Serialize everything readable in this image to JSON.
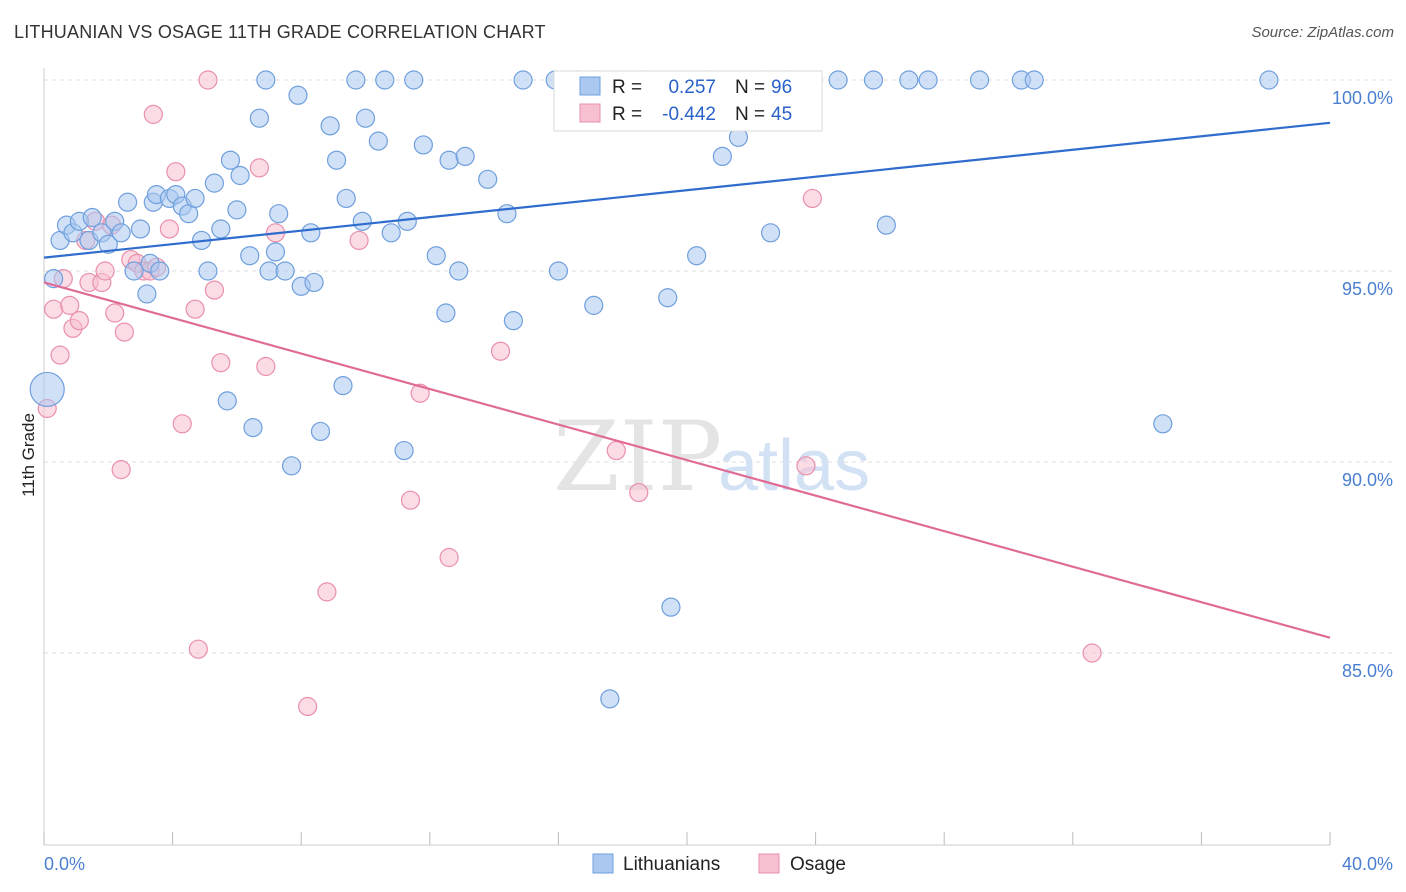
{
  "title": "LITHUANIAN VS OSAGE 11TH GRADE CORRELATION CHART",
  "source": "Source: ZipAtlas.com",
  "watermark": {
    "zip": "ZIP",
    "atlas": "atlas"
  },
  "colors": {
    "blue_fill": "#aac8f0",
    "blue_stroke": "#6f9fdd",
    "blue_line": "#2f6ccd",
    "pink_fill": "#f7c0d0",
    "pink_stroke": "#e98fac",
    "pink_line": "#e06b95",
    "tick_text": "#4a7fd0",
    "grid": "#dddddd"
  },
  "stats": {
    "r_label": "R =",
    "n_label": "N =",
    "rows": [
      {
        "series": "Lithuanians",
        "r": "0.257",
        "n": "96"
      },
      {
        "series": "Osage",
        "r": "-0.442",
        "n": "45"
      }
    ]
  },
  "chart_data": {
    "type": "scatter",
    "title": "LITHUANIAN VS OSAGE 11TH GRADE CORRELATION CHART",
    "xlabel": "",
    "ylabel": "11th Grade",
    "xlim": [
      0,
      40
    ],
    "ylim": [
      80,
      100.4
    ],
    "x_tick_labels": [
      "0.0%",
      "40.0%"
    ],
    "y_ticks": [
      85,
      90,
      95,
      100
    ],
    "y_tick_labels": [
      "85.0%",
      "90.0%",
      "95.0%",
      "100.0%"
    ],
    "grid": true,
    "legend_position": "bottom-center",
    "series": [
      {
        "name": "Lithuanians",
        "color": "#aac8f0",
        "trend": {
          "x": [
            0,
            40
          ],
          "y": [
            95.35,
            98.88
          ]
        },
        "points": [
          [
            0.1,
            91.9
          ],
          [
            0.3,
            94.8
          ],
          [
            0.5,
            95.8
          ],
          [
            0.7,
            96.2
          ],
          [
            0.9,
            96.0
          ],
          [
            1.1,
            96.3
          ],
          [
            1.4,
            95.8
          ],
          [
            1.5,
            96.4
          ],
          [
            1.8,
            96.0
          ],
          [
            2.0,
            95.7
          ],
          [
            2.2,
            96.3
          ],
          [
            2.4,
            96.0
          ],
          [
            2.6,
            96.8
          ],
          [
            3.0,
            96.1
          ],
          [
            3.3,
            95.2
          ],
          [
            3.6,
            95.0
          ],
          [
            3.2,
            94.4
          ],
          [
            3.4,
            96.8
          ],
          [
            3.5,
            97.0
          ],
          [
            3.9,
            96.9
          ],
          [
            4.1,
            97.0
          ],
          [
            4.3,
            96.7
          ],
          [
            4.5,
            96.5
          ],
          [
            4.7,
            96.9
          ],
          [
            4.9,
            95.8
          ],
          [
            5.1,
            95.0
          ],
          [
            5.3,
            97.3
          ],
          [
            5.5,
            96.1
          ],
          [
            5.7,
            91.6
          ],
          [
            5.8,
            97.9
          ],
          [
            6.0,
            96.6
          ],
          [
            6.1,
            97.5
          ],
          [
            6.4,
            95.4
          ],
          [
            6.5,
            90.9
          ],
          [
            6.7,
            99.0
          ],
          [
            7.0,
            95.0
          ],
          [
            7.2,
            95.5
          ],
          [
            7.3,
            96.5
          ],
          [
            7.5,
            95.0
          ],
          [
            7.7,
            89.9
          ],
          [
            7.9,
            99.6
          ],
          [
            8.0,
            94.6
          ],
          [
            8.3,
            96.0
          ],
          [
            8.4,
            94.7
          ],
          [
            8.6,
            90.8
          ],
          [
            8.9,
            98.8
          ],
          [
            9.1,
            97.9
          ],
          [
            9.3,
            92.0
          ],
          [
            9.4,
            96.9
          ],
          [
            9.7,
            100.0
          ],
          [
            9.9,
            96.3
          ],
          [
            10.0,
            99.0
          ],
          [
            10.4,
            98.4
          ],
          [
            10.6,
            100.0
          ],
          [
            10.8,
            96.0
          ],
          [
            11.2,
            90.3
          ],
          [
            11.3,
            96.3
          ],
          [
            11.8,
            98.3
          ],
          [
            12.2,
            95.4
          ],
          [
            12.5,
            93.9
          ],
          [
            12.6,
            97.9
          ],
          [
            12.9,
            95.0
          ],
          [
            13.1,
            98.0
          ],
          [
            13.8,
            97.4
          ],
          [
            14.4,
            96.5
          ],
          [
            14.6,
            93.7
          ],
          [
            14.9,
            100.0
          ],
          [
            15.9,
            100.0
          ],
          [
            16.0,
            95.0
          ],
          [
            17.2,
            100.0
          ],
          [
            16.6,
            100.0
          ],
          [
            17.1,
            94.1
          ],
          [
            18.6,
            100.0
          ],
          [
            19.4,
            94.3
          ],
          [
            19.5,
            86.2
          ],
          [
            20.3,
            95.4
          ],
          [
            20.7,
            100.0
          ],
          [
            21.1,
            98.0
          ],
          [
            21.6,
            98.5
          ],
          [
            22.3,
            100.0
          ],
          [
            22.6,
            96.0
          ],
          [
            23.2,
            100.0
          ],
          [
            24.7,
            100.0
          ],
          [
            25.8,
            100.0
          ],
          [
            26.2,
            96.2
          ],
          [
            26.9,
            100.0
          ],
          [
            27.5,
            100.0
          ],
          [
            29.1,
            100.0
          ],
          [
            30.4,
            100.0
          ],
          [
            30.8,
            100.0
          ],
          [
            34.8,
            91.0
          ],
          [
            38.1,
            100.0
          ],
          [
            17.6,
            83.8
          ],
          [
            11.5,
            100.0
          ],
          [
            6.9,
            100.0
          ],
          [
            2.8,
            95.0
          ]
        ]
      },
      {
        "name": "Osage",
        "color": "#f7c0d0",
        "trend": {
          "x": [
            0,
            40
          ],
          "y": [
            94.7,
            85.4
          ]
        },
        "points": [
          [
            0.1,
            91.4
          ],
          [
            0.3,
            94.0
          ],
          [
            0.5,
            92.8
          ],
          [
            0.6,
            94.8
          ],
          [
            0.8,
            94.1
          ],
          [
            0.9,
            93.5
          ],
          [
            1.1,
            93.7
          ],
          [
            1.3,
            95.8
          ],
          [
            1.4,
            94.7
          ],
          [
            1.6,
            96.3
          ],
          [
            1.8,
            94.7
          ],
          [
            1.9,
            95.0
          ],
          [
            2.1,
            96.2
          ],
          [
            2.2,
            93.9
          ],
          [
            2.4,
            89.8
          ],
          [
            2.5,
            93.4
          ],
          [
            2.7,
            95.3
          ],
          [
            2.9,
            95.2
          ],
          [
            3.1,
            95.0
          ],
          [
            3.3,
            95.0
          ],
          [
            3.4,
            99.1
          ],
          [
            3.5,
            95.1
          ],
          [
            3.9,
            96.1
          ],
          [
            4.1,
            97.6
          ],
          [
            4.3,
            91.0
          ],
          [
            4.7,
            94.0
          ],
          [
            4.8,
            85.1
          ],
          [
            5.1,
            100.0
          ],
          [
            5.3,
            94.5
          ],
          [
            5.5,
            92.6
          ],
          [
            6.7,
            97.7
          ],
          [
            6.9,
            92.5
          ],
          [
            7.2,
            96.0
          ],
          [
            8.2,
            83.6
          ],
          [
            8.8,
            86.6
          ],
          [
            9.8,
            95.8
          ],
          [
            11.4,
            89.0
          ],
          [
            11.7,
            91.8
          ],
          [
            12.6,
            87.5
          ],
          [
            14.2,
            92.9
          ],
          [
            17.8,
            90.3
          ],
          [
            18.5,
            89.2
          ],
          [
            23.7,
            89.9
          ],
          [
            23.9,
            96.9
          ],
          [
            32.6,
            85.0
          ]
        ]
      }
    ]
  },
  "legend": {
    "items": [
      "Lithuanians",
      "Osage"
    ]
  }
}
